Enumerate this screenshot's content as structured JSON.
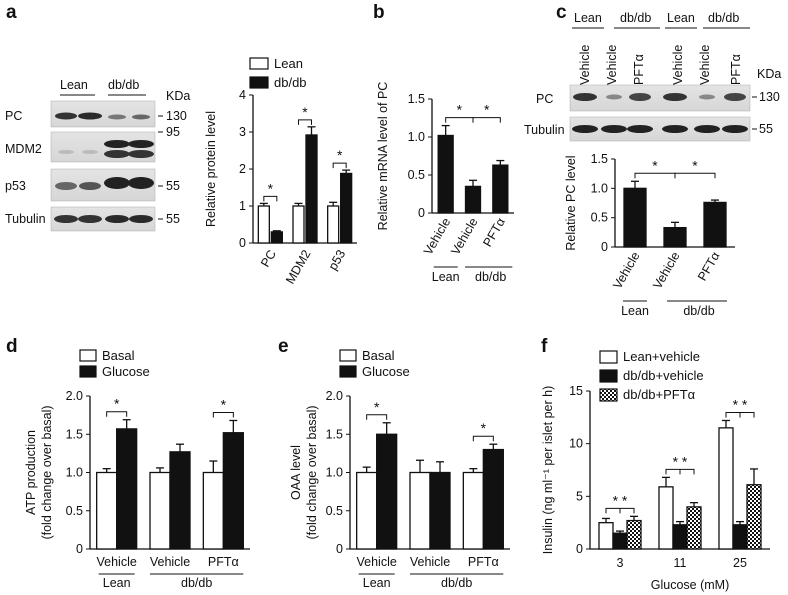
{
  "panels": [
    {
      "id": "a",
      "blot": {
        "groups": [
          "Lean",
          "db/db"
        ],
        "unit_label": "KDa",
        "bands": [
          {
            "name": "PC",
            "kda": "130"
          },
          {
            "name": "MDM2",
            "kda": "95"
          },
          {
            "name": "p53",
            "kda": "55"
          },
          {
            "name": "Tubulin",
            "kda": "55"
          }
        ]
      },
      "chart": {
        "type": "bar",
        "categories": [
          "PC",
          "MDM2",
          "p53"
        ],
        "series": [
          {
            "name": "Lean",
            "values": [
              1.0,
              1.0,
              1.0
            ],
            "errors": [
              0.07,
              0.07,
              0.1
            ],
            "fill": "white"
          },
          {
            "name": "db/db",
            "values": [
              0.3,
              2.92,
              1.88
            ],
            "errors": [
              0.03,
              0.22,
              0.09
            ],
            "fill": "black"
          }
        ],
        "ylabel": "Relative protein level",
        "ylim": [
          0,
          4
        ],
        "yticks": [
          "0",
          "1",
          "2",
          "3",
          "4"
        ],
        "significance": [
          "*",
          "*",
          "*"
        ]
      }
    },
    {
      "id": "b",
      "chart": {
        "type": "bar",
        "categories": [
          "Vehicle",
          "Vehicle",
          "PFTα"
        ],
        "group_labels": [
          "Lean",
          "db/db"
        ],
        "values": [
          1.02,
          0.35,
          0.63
        ],
        "errors": [
          0.13,
          0.08,
          0.06
        ],
        "ylabel": "Relative mRNA level of PC",
        "ylim": [
          0,
          1.5
        ],
        "yticks": [
          "0",
          "0.5",
          "1.0",
          "1.5"
        ],
        "significance": [
          "*",
          "*"
        ]
      }
    },
    {
      "id": "c",
      "blot": {
        "groups": [
          "Lean",
          "db/db",
          "Lean",
          "db/db"
        ],
        "lanes": [
          "Vehicle",
          "Vehicle",
          "PFTα",
          "Vehicle",
          "Vehicle",
          "PFTα"
        ],
        "unit_label": "KDa",
        "bands": [
          {
            "name": "PC",
            "kda": "130"
          },
          {
            "name": "Tubulin",
            "kda": "55"
          }
        ]
      },
      "chart": {
        "type": "bar",
        "categories": [
          "Vehicle",
          "Vehicle",
          "PFTα"
        ],
        "group_labels": [
          "Lean",
          "db/db"
        ],
        "values": [
          1.0,
          0.33,
          0.76
        ],
        "errors": [
          0.12,
          0.09,
          0.04
        ],
        "ylabel": "Relative PC level",
        "ylim": [
          0,
          1.5
        ],
        "yticks": [
          "0",
          "0.5",
          "1.0",
          "1.5"
        ],
        "significance": [
          "*",
          "*"
        ]
      }
    },
    {
      "id": "d",
      "chart": {
        "type": "bar",
        "categories": [
          "Vehicle",
          "Vehicle",
          "PFTα"
        ],
        "group_labels": [
          "Lean",
          "db/db"
        ],
        "series": [
          {
            "name": "Basal",
            "values": [
              1.0,
              1.0,
              1.0
            ],
            "errors": [
              0.05,
              0.06,
              0.15
            ],
            "fill": "white"
          },
          {
            "name": "Glucose",
            "values": [
              1.57,
              1.27,
              1.52
            ],
            "errors": [
              0.12,
              0.1,
              0.16
            ],
            "fill": "black"
          }
        ],
        "ylabel": "ATP production",
        "ylabel2": "(fold change over basal)",
        "ylim": [
          0,
          2.0
        ],
        "yticks": [
          "0",
          "0.5",
          "1.0",
          "1.5",
          "2.0"
        ],
        "significance": [
          "*",
          "",
          "*"
        ]
      }
    },
    {
      "id": "e",
      "chart": {
        "type": "bar",
        "categories": [
          "Vehicle",
          "Vehicle",
          "PFTα"
        ],
        "group_labels": [
          "Lean",
          "db/db"
        ],
        "series": [
          {
            "name": "Basal",
            "values": [
              1.0,
              1.0,
              1.0
            ],
            "errors": [
              0.07,
              0.16,
              0.05
            ],
            "fill": "white"
          },
          {
            "name": "Glucose",
            "values": [
              1.5,
              1.0,
              1.3
            ],
            "errors": [
              0.15,
              0.14,
              0.07
            ],
            "fill": "black"
          }
        ],
        "ylabel": "OAA level",
        "ylabel2": "(fold change over basal)",
        "ylim": [
          0,
          2.0
        ],
        "yticks": [
          "0",
          "0.5",
          "1.0",
          "1.5",
          "2.0"
        ],
        "significance": [
          "*",
          "",
          "*"
        ]
      }
    },
    {
      "id": "f",
      "chart": {
        "type": "bar",
        "categories": [
          "3",
          "11",
          "25"
        ],
        "series": [
          {
            "name": "Lean+vehicle",
            "values": [
              2.5,
              5.9,
              11.5
            ],
            "errors": [
              0.4,
              0.9,
              0.7
            ],
            "fill": "white"
          },
          {
            "name": "db/db+vehicle",
            "values": [
              1.5,
              2.3,
              2.3
            ],
            "errors": [
              0.2,
              0.3,
              0.3
            ],
            "fill": "black"
          },
          {
            "name": "db/db+PFTα",
            "values": [
              2.7,
              4.0,
              6.1
            ],
            "errors": [
              0.4,
              0.4,
              1.5
            ],
            "fill": "checker"
          }
        ],
        "xlabel": "Glucose (mM)",
        "ylabel": "Insulin (ng ml⁻¹ per islet per h)",
        "ylim": [
          0,
          15
        ],
        "yticks": [
          "0",
          "5",
          "10",
          "15"
        ],
        "significance": [
          "* *",
          "* *",
          "* *"
        ]
      }
    }
  ]
}
